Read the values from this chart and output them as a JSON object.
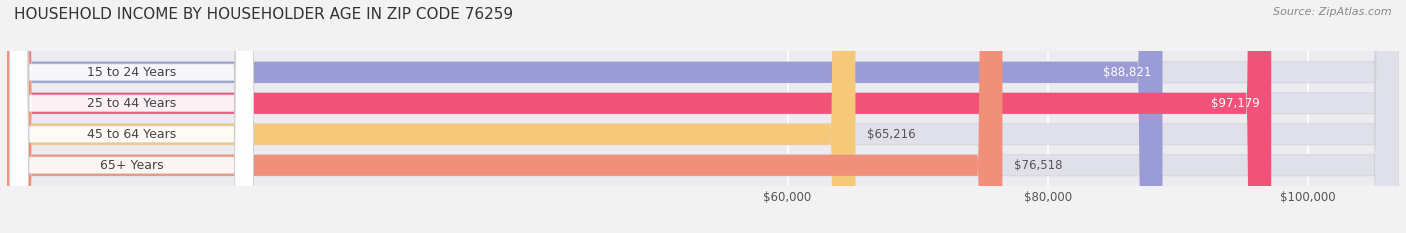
{
  "title": "HOUSEHOLD INCOME BY HOUSEHOLDER AGE IN ZIP CODE 76259",
  "source": "Source: ZipAtlas.com",
  "categories": [
    "15 to 24 Years",
    "25 to 44 Years",
    "45 to 64 Years",
    "65+ Years"
  ],
  "values": [
    88821,
    97179,
    65216,
    76518
  ],
  "bar_colors": [
    "#9b9bd6",
    "#f0527a",
    "#f5c87a",
    "#f0907a"
  ],
  "bar_bg_color": "#e8e8f0",
  "label_inside_colors": [
    "#ffffff",
    "#ffffff",
    "#888855",
    "#ffffff"
  ],
  "value_label_colors": [
    "#ffffff",
    "#ffffff",
    "#888855",
    "#888855"
  ],
  "xmin": 0,
  "xmax": 107000,
  "xticks": [
    60000,
    80000,
    100000
  ],
  "xtick_labels": [
    "$60,000",
    "$80,000",
    "$100,000"
  ],
  "background_color": "#f2f2f2",
  "plot_bg_color": "#ebebf0",
  "title_fontsize": 11,
  "source_fontsize": 8,
  "tick_fontsize": 8.5,
  "label_fontsize": 8.5,
  "category_fontsize": 9
}
